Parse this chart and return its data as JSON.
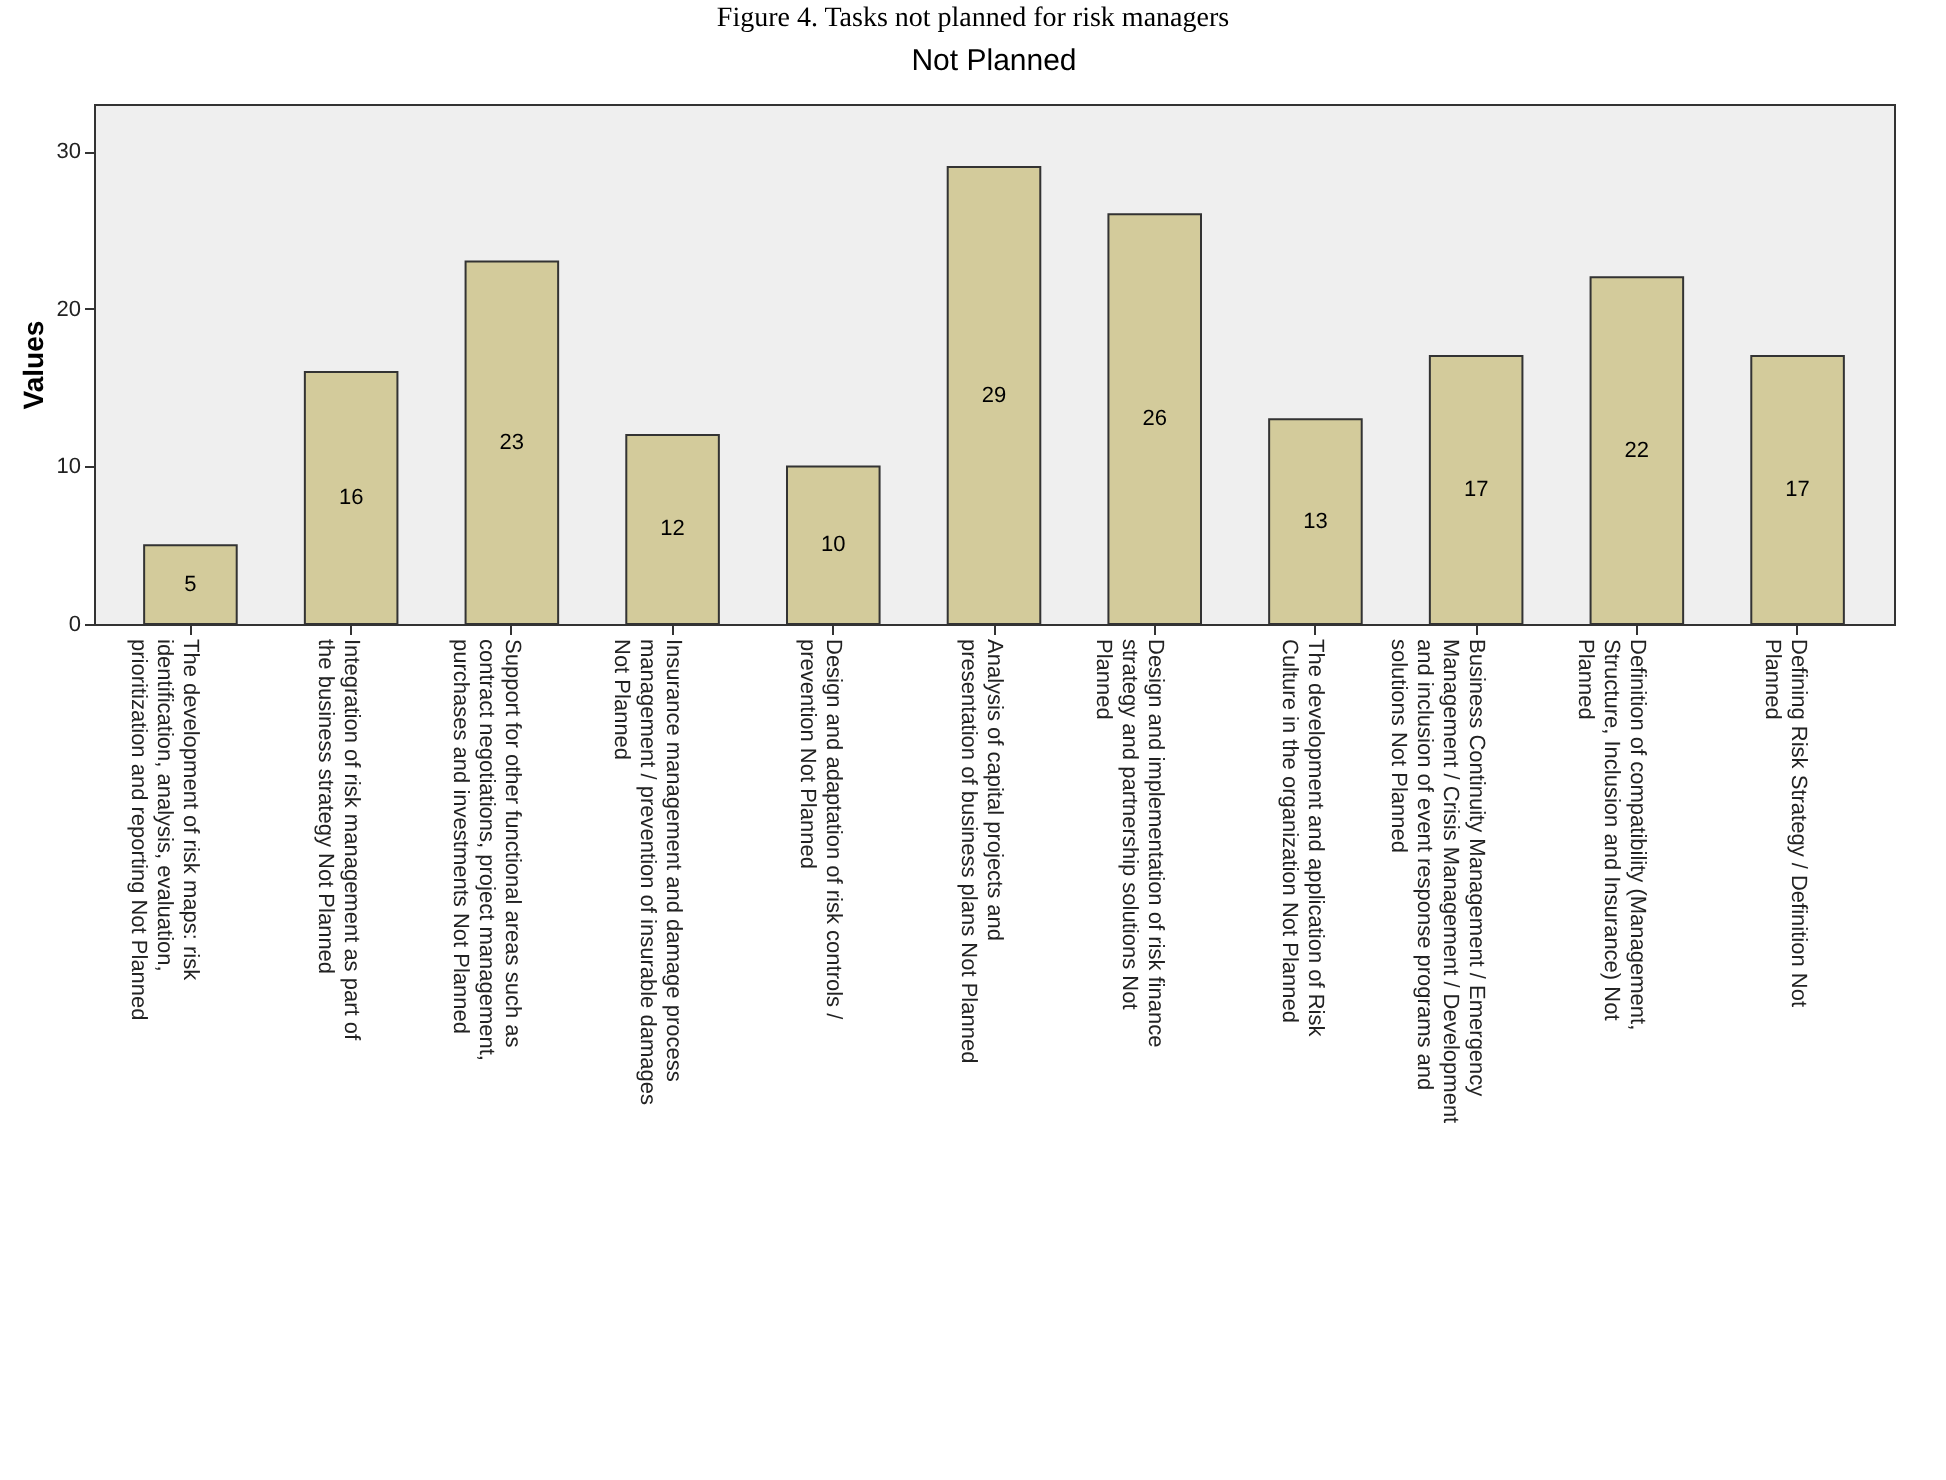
{
  "chart_data": {
    "type": "bar",
    "title": "Not Planned",
    "ylabel": "Values",
    "annotations": [
      "Figure 4. Tasks not planned for risk managers"
    ],
    "categories": [
      "The development of risk maps: risk identification, analysis, evaluation, prioritization and reporting Not Planned",
      "Integration of risk management as part of the business strategy Not Planned",
      "Support for other functional areas such as contract negotiations, project management, purchases and investments Not Planned",
      "Insurance management and damage process management / prevention of insurable damages Not Planned",
      "Design and adaptation of risk controls / prevention Not Planned",
      "Analysis of capital projects and presentation of business plans Not Planned",
      "Design and implementation of risk finance strategy and partnership solutions Not Planned",
      "The development and application of Risk Culture in the organization Not Planned",
      "Business Continuity Management / Emergency Management / Crisis Management / Development and inclusion of event response programs and solutions Not Planned",
      "Definition of compatibility (Management, Structure, Inclusion and Insurance) Not Planned",
      "Defining Risk Strategy / Definition Not Planned"
    ],
    "values": [
      5,
      16,
      23,
      12,
      10,
      29,
      26,
      13,
      17,
      22,
      17
    ],
    "color": "#d3cb9b",
    "data_labels": true,
    "ylim": [
      0,
      33
    ],
    "yticks": [
      0,
      10,
      20,
      30
    ],
    "grid": false
  }
}
